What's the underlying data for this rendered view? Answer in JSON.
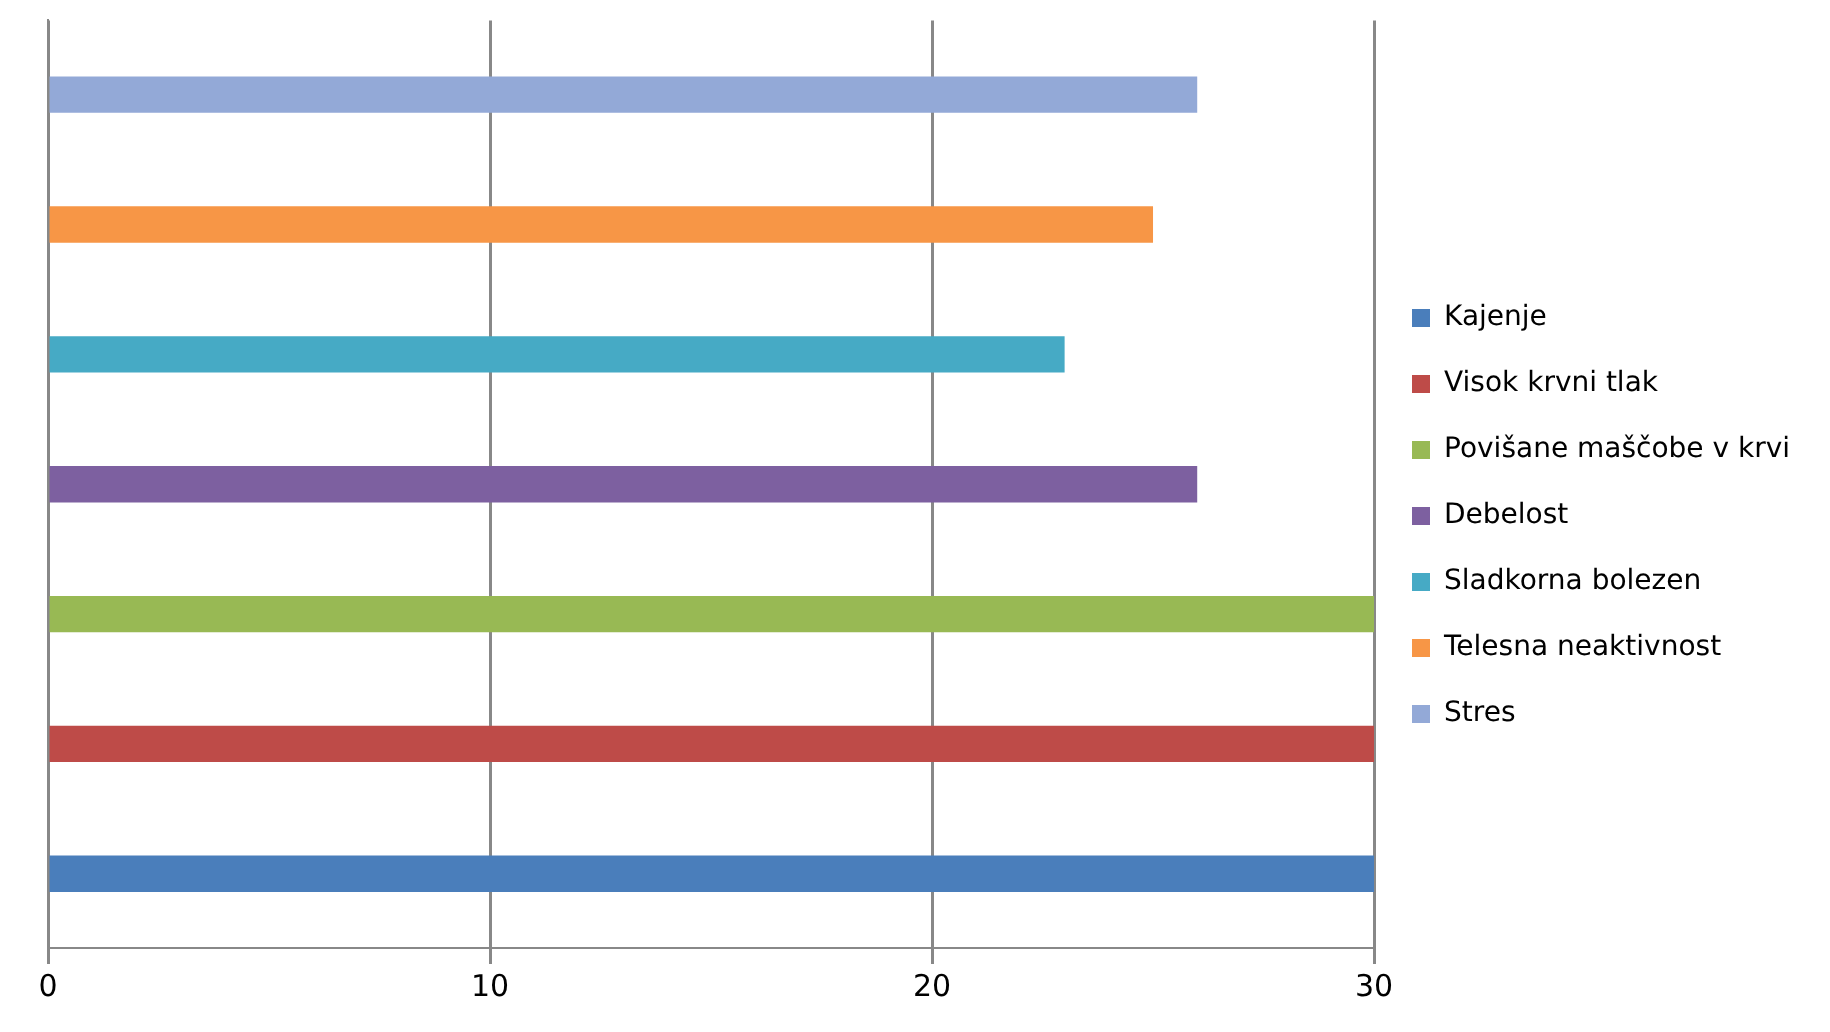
{
  "chart_data": {
    "type": "bar",
    "orientation": "horizontal",
    "categories": [
      null
    ],
    "series": [
      {
        "name": "Kajenje",
        "color": "#4a7ebb",
        "values": [
          30
        ]
      },
      {
        "name": "Visok krvni tlak",
        "color": "#be4b48",
        "values": [
          30
        ]
      },
      {
        "name": "Povišane maščobe v krvi",
        "color": "#98b954",
        "values": [
          30
        ]
      },
      {
        "name": "Debelost",
        "color": "#7d60a0",
        "values": [
          26
        ]
      },
      {
        "name": "Sladkorna bolezen",
        "color": "#46aac5",
        "values": [
          23
        ]
      },
      {
        "name": "Telesna neaktivnost",
        "color": "#f79646",
        "values": [
          25
        ]
      },
      {
        "name": "Stres",
        "color": "#93a9d7",
        "values": [
          26
        ]
      }
    ],
    "xlim": [
      0,
      30
    ],
    "xticks": [
      0,
      10,
      20,
      30
    ],
    "grid": "x",
    "legend": "right"
  }
}
